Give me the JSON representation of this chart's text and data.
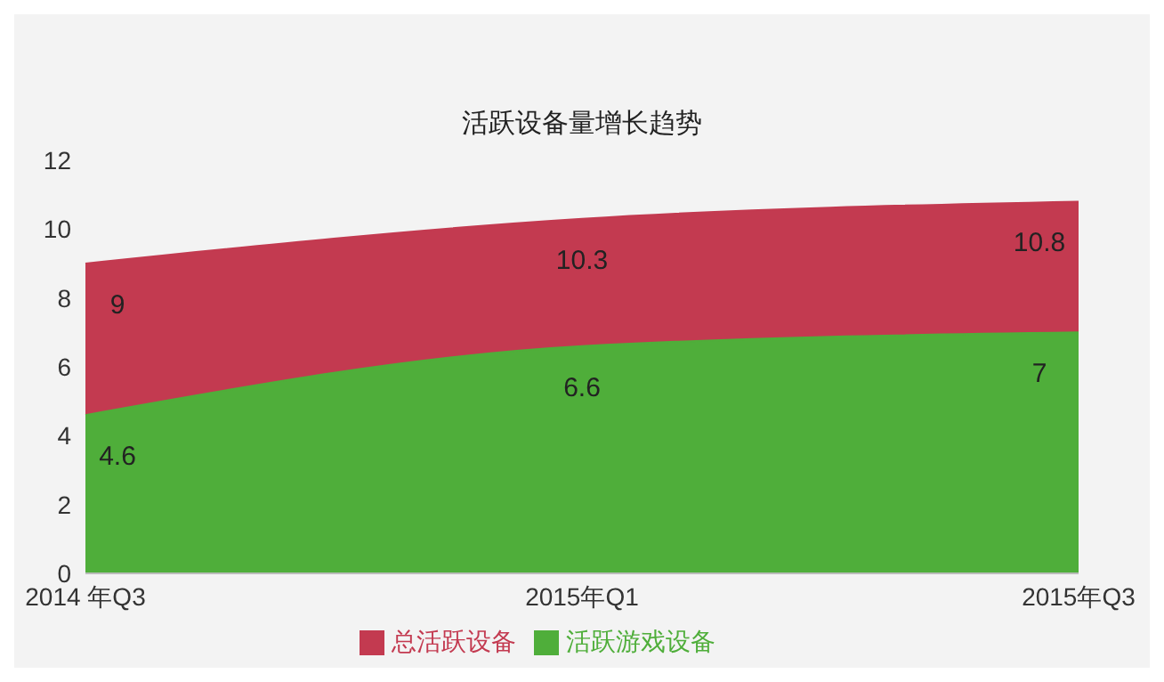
{
  "chart_data": {
    "type": "area",
    "title": "活跃设备量增长趋势",
    "categories": [
      "2014 年Q3",
      "2015年Q1",
      "2015年Q3"
    ],
    "series": [
      {
        "name": "总活跃设备",
        "color": "#c33a50",
        "values": [
          9,
          10.3,
          10.8
        ]
      },
      {
        "name": "活跃游戏设备",
        "color": "#4fae3a",
        "values": [
          4.6,
          6.6,
          7
        ]
      }
    ],
    "ylim": [
      0,
      12
    ],
    "yticks": [
      0,
      2,
      4,
      6,
      8,
      10,
      12
    ],
    "data_labels": true,
    "legend": "bottom"
  }
}
